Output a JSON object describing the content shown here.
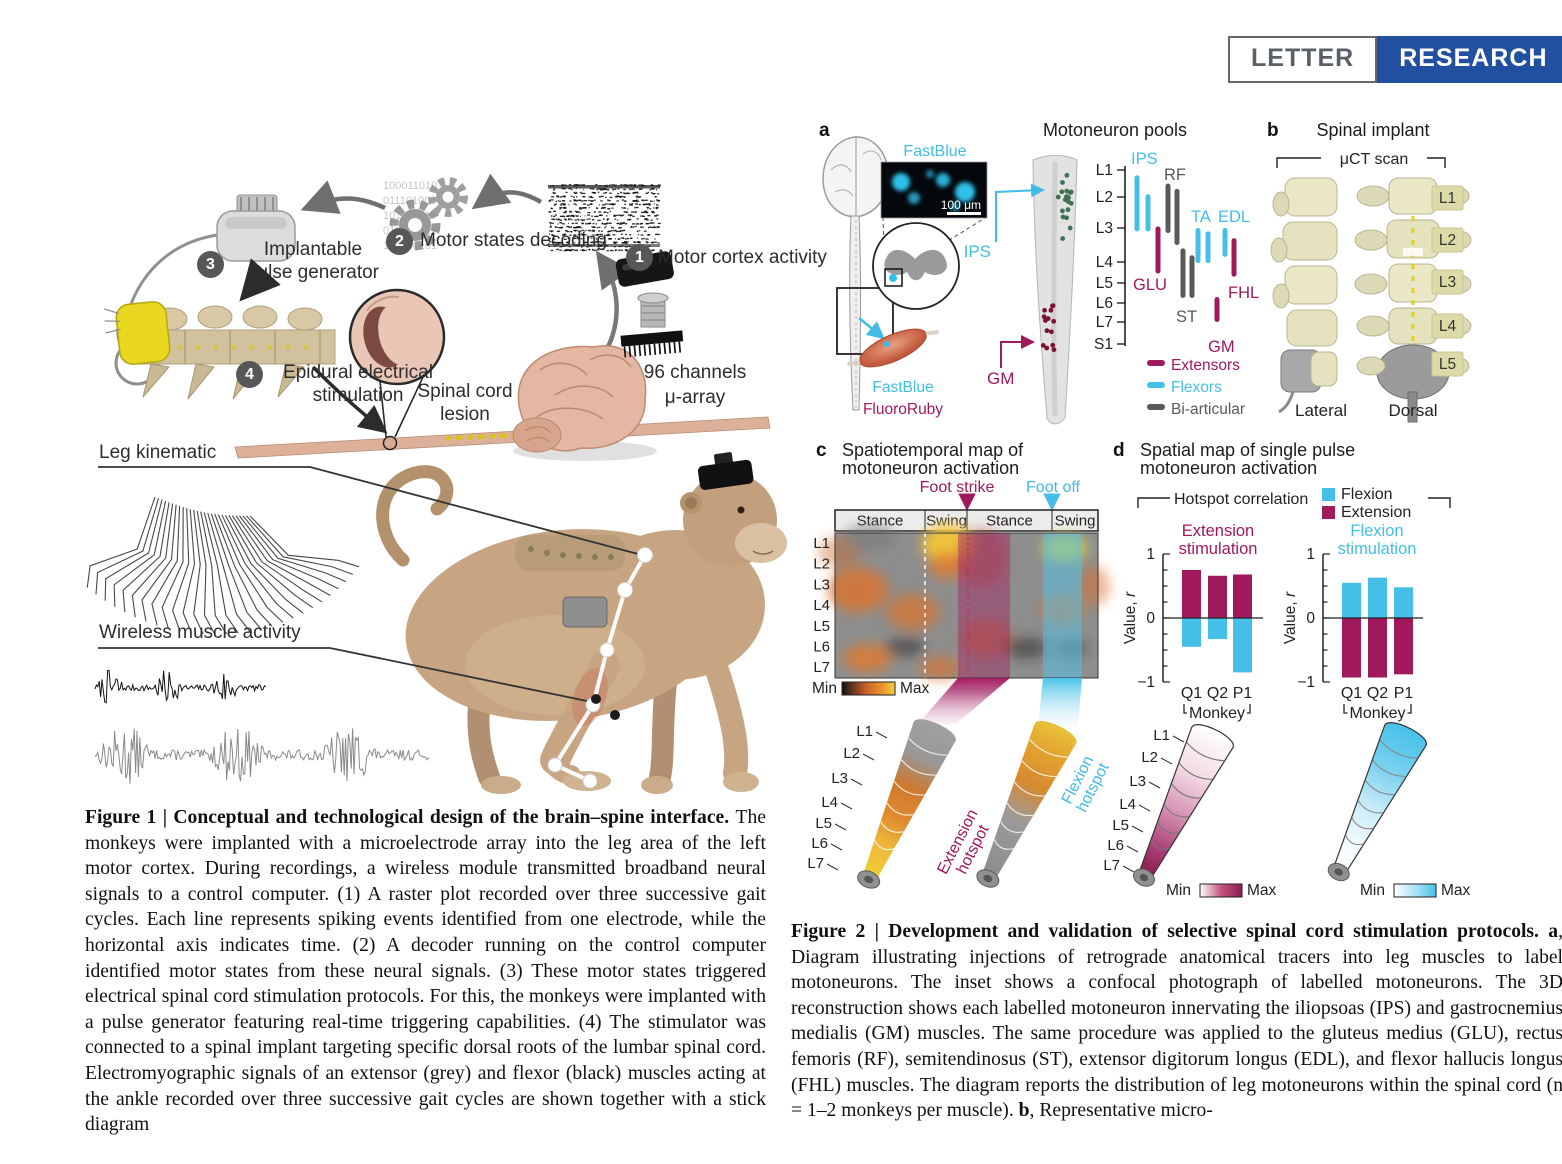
{
  "banner": {
    "letter": "LETTER",
    "research": "RESEARCH"
  },
  "figure1": {
    "steps": [
      {
        "num": "1",
        "line1": "Motor cortex activity",
        "line2": ""
      },
      {
        "num": "2",
        "line1": "Motor states decoding",
        "line2": ""
      },
      {
        "num": "3",
        "line1": "Implantable",
        "line2": "pulse generator"
      },
      {
        "num": "4",
        "line1": "Epidural electrical",
        "line2": "stimulation"
      }
    ],
    "lesion_line1": "Spinal cord",
    "lesion_line2": "lesion",
    "channels": "96 channels",
    "array": "μ-array",
    "leg_kinematic": "Leg kinematic",
    "wireless": "Wireless muscle activity",
    "binary_rows": [
      "100011010",
      "011101000",
      "101001110",
      "010011011",
      "110100101"
    ],
    "caption_bold": "Figure 1 | Conceptual and technological design of the brain–spine interface. ",
    "caption_text": "The monkeys were implanted with a microelectrode array into the leg area of the left motor cortex. During recordings, a wireless module transmitted broadband neural signals to a control computer. (1) A raster plot recorded over three successive gait cycles. Each line represents spiking events identified from one electrode, while the horizontal axis indicates time. (2) A decoder running on the control computer identified motor states from these neural signals. (3) These motor states triggered electrical spinal cord stimulation protocols. For this, the monkeys were implanted with a pulse generator featuring real-time triggering capabilities. (4) The stimulator was connected to a spinal implant targeting specific dorsal roots of the lumbar spinal cord. Electromyographic signals of an extensor (grey) and flexor (black) muscles acting at the ankle recorded over three successive gait cycles are shown together with a stick diagram"
  },
  "figure2": {
    "panel_a": {
      "letter": "a",
      "title": "Motoneuron pools",
      "inset_label": "FastBlue",
      "scale_bar": "100 μm",
      "ips": "IPS",
      "gm": "GM",
      "tracer_blue": "FastBlue",
      "tracer_ruby": "FluoroRuby",
      "levels": [
        "L1",
        "L2",
        "L3",
        "L4",
        "L5",
        "L6",
        "L7",
        "S1"
      ],
      "legend": [
        {
          "label": "Extensors",
          "color": "#A0195C"
        },
        {
          "label": "Flexors",
          "color": "#45BEE8"
        },
        {
          "label": "Bi-articular",
          "color": "#58595B"
        }
      ]
    },
    "panel_b": {
      "letter": "b",
      "title": "Spinal implant",
      "scan": "μCT scan",
      "levels": [
        "L1",
        "L2",
        "L3",
        "L4",
        "L5"
      ],
      "views": [
        "Lateral",
        "Dorsal"
      ]
    },
    "panel_c": {
      "letter": "c",
      "title1": "Spatiotemporal map of",
      "title2": "motoneuron activation",
      "foot_strike": "Foot strike",
      "foot_off": "Foot off",
      "gait": [
        "Stance",
        "Swing",
        "Stance",
        "Swing"
      ],
      "levels": [
        "L1",
        "L2",
        "L3",
        "L4",
        "L5",
        "L6",
        "L7"
      ],
      "min": "Min",
      "max": "Max",
      "ext_hotspot": "Extension hotspot",
      "flex_hotspot": "Flexion hotspot"
    },
    "panel_d": {
      "letter": "d",
      "title1": "Spatial map of single pulse",
      "title2": "motoneuron activation",
      "bracket": "Hotspot correlation",
      "legend_flexion": "Flexion",
      "legend_extension": "Extension",
      "yticks": [
        "1",
        "0",
        "−1"
      ],
      "ylabel": "Value,",
      "ylabel_it": "r",
      "monkey": "Monkey",
      "levels": [
        "L1",
        "L2",
        "L3",
        "L4",
        "L5",
        "L6",
        "L7"
      ],
      "min": "Min",
      "max": "Max"
    },
    "caption_bold": "Figure 2 | Development and validation of selective spinal cord stimulation protocols. ",
    "caption_a": "a",
    "caption_a_text": ", Diagram illustrating injections of retrograde anatomical tracers into leg muscles to label motoneurons. The inset shows a confocal photograph of labelled motoneurons. The 3D reconstruction shows each labelled motoneuron innervating the iliopsoas (IPS) and gastrocnemius medialis (GM) muscles. The same procedure was applied to the gluteus medius (GLU), rectus femoris (RF), semitendinosus (ST), extensor digitorum longus (EDL), and flexor hallucis longus (FHL) muscles. The diagram reports the distribution of leg motoneurons within the spinal cord (n = 1–2 monkeys per muscle). ",
    "caption_b": "b",
    "caption_b_text": ", Representative micro-"
  },
  "chart_data": [
    {
      "type": "bar",
      "title": "Extension stimulation",
      "title_color": "#A0195C",
      "categories": [
        "Q1",
        "Q2",
        "P1"
      ],
      "xlabel": "Monkey",
      "ylabel": "Value, r",
      "ylim": [
        -1,
        1
      ],
      "series": [
        {
          "name": "Extension",
          "color": "#A0195C",
          "values": [
            0.75,
            0.66,
            0.68
          ]
        },
        {
          "name": "Flexion",
          "color": "#45BEE8",
          "values": [
            -0.45,
            -0.33,
            -0.85
          ]
        }
      ]
    },
    {
      "type": "bar",
      "title": "Flexion stimulation",
      "title_color": "#45BEE8",
      "categories": [
        "Q1",
        "Q2",
        "P1"
      ],
      "xlabel": "Monkey",
      "ylabel": "Value, r",
      "ylim": [
        -1,
        1
      ],
      "series": [
        {
          "name": "Flexion",
          "color": "#45BEE8",
          "values": [
            0.55,
            0.63,
            0.48
          ]
        },
        {
          "name": "Extension",
          "color": "#A0195C",
          "values": [
            -0.93,
            -0.93,
            -0.88
          ]
        }
      ]
    },
    {
      "type": "range",
      "title": "Motoneuron pools",
      "axis_levels": [
        "L1",
        "L2",
        "L3",
        "L4",
        "L5",
        "L6",
        "L7",
        "S1"
      ],
      "groups": {
        "Extensors": "#A0195C",
        "Flexors": "#45BEE8",
        "Bi-articular": "#58595B"
      },
      "muscles": [
        {
          "name": "IPS",
          "group": "Flexors",
          "spans": [
            [
              1.2,
              3.1
            ],
            [
              1.9,
              3.1
            ]
          ]
        },
        {
          "name": "RF",
          "group": "Bi-articular",
          "spans": [
            [
              1.5,
              3.15
            ],
            [
              1.7,
              3.5
            ]
          ]
        },
        {
          "name": "GLU",
          "group": "Extensors",
          "spans": [
            [
              2.95,
              4.55
            ]
          ]
        },
        {
          "name": "ST",
          "group": "Bi-articular",
          "spans": [
            [
              3.6,
              5.75
            ],
            [
              3.8,
              5.75
            ]
          ]
        },
        {
          "name": "TA",
          "group": "Flexors",
          "spans": [
            [
              3.0,
              4.05
            ],
            [
              3.1,
              4.05
            ]
          ]
        },
        {
          "name": "EDL",
          "group": "Flexors",
          "spans": [
            [
              3.0,
              3.85
            ]
          ]
        },
        {
          "name": "FHL",
          "group": "Extensors",
          "spans": [
            [
              3.3,
              4.7
            ]
          ]
        },
        {
          "name": "GM",
          "group": "Extensors",
          "spans": [
            [
              5.7,
              7.0
            ]
          ]
        }
      ]
    },
    {
      "type": "heatmap",
      "title": "Spatiotemporal map of motoneuron activation",
      "rows": [
        "L1",
        "L2",
        "L3",
        "L4",
        "L5",
        "L6",
        "L7"
      ],
      "x_phases": [
        "Stance",
        "Swing",
        "Stance",
        "Swing"
      ],
      "events": [
        "Foot strike",
        "Foot off"
      ],
      "scale": [
        "Min",
        "Max"
      ],
      "hotspots": [
        {
          "where": "swing, L1–L2",
          "level": "max"
        },
        {
          "where": "late stance, L5–L7",
          "level": "high"
        },
        {
          "where": "stance after foot strike",
          "overlay": "extension (magenta)"
        },
        {
          "where": "swing after foot off",
          "overlay": "flexion (cyan)"
        }
      ]
    }
  ],
  "colors": {
    "magenta": "#A0195C",
    "cyan": "#45BEE8",
    "biarticular": "#58595B",
    "banner_blue": "#20509f",
    "bone": "#E9E7C6",
    "badge": "#DCDAA6"
  }
}
